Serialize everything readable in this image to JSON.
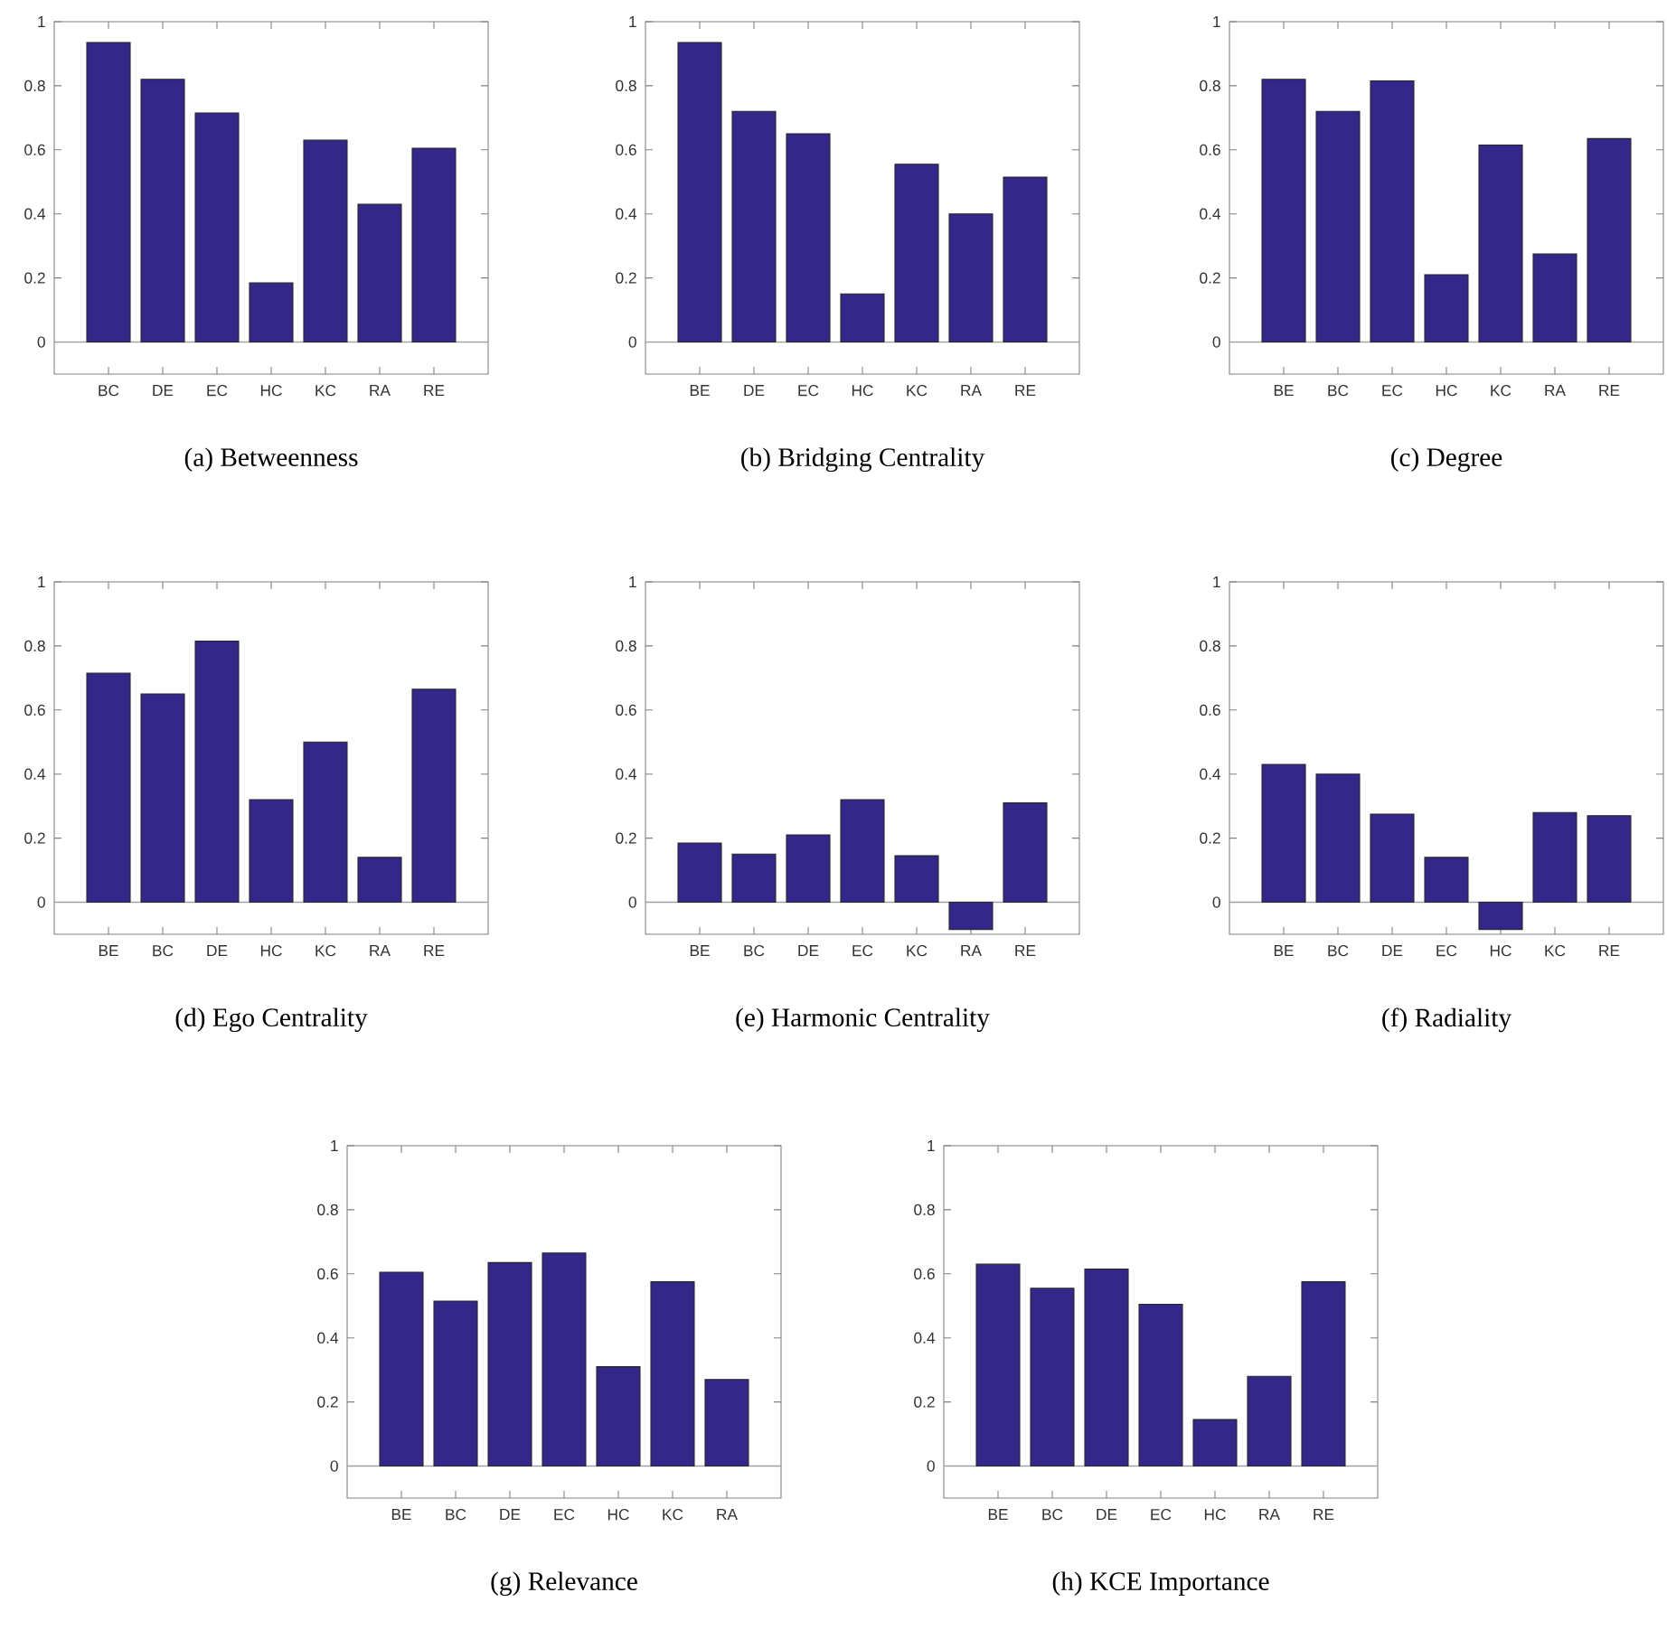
{
  "chart_data": [
    {
      "type": "bar",
      "title": "(a)  Betweenness",
      "categories": [
        "BC",
        "DE",
        "EC",
        "HC",
        "KC",
        "RA",
        "RE"
      ],
      "values": [
        0.935,
        0.82,
        0.715,
        0.185,
        0.63,
        0.43,
        0.605
      ],
      "color": "#33288a",
      "ylim": [
        -0.1,
        1
      ],
      "yticks": [
        0,
        0.2,
        0.4,
        0.6,
        0.8,
        1
      ],
      "ref_lines": [
        {
          "axis": "y",
          "value": 0,
          "color": "#a0a0a0"
        }
      ]
    },
    {
      "type": "bar",
      "title": "(b)  Bridging Centrality",
      "categories": [
        "BE",
        "DE",
        "EC",
        "HC",
        "KC",
        "RA",
        "RE"
      ],
      "values": [
        0.935,
        0.72,
        0.65,
        0.15,
        0.555,
        0.4,
        0.515
      ],
      "color": "#33288a",
      "ylim": [
        -0.1,
        1
      ],
      "yticks": [
        0,
        0.2,
        0.4,
        0.6,
        0.8,
        1
      ],
      "ref_lines": [
        {
          "axis": "y",
          "value": 0,
          "color": "#a0a0a0"
        }
      ]
    },
    {
      "type": "bar",
      "title": "(c)  Degree",
      "categories": [
        "BE",
        "BC",
        "EC",
        "HC",
        "KC",
        "RA",
        "RE"
      ],
      "values": [
        0.82,
        0.72,
        0.815,
        0.21,
        0.615,
        0.275,
        0.635
      ],
      "color": "#33288a",
      "ylim": [
        -0.1,
        1
      ],
      "yticks": [
        0,
        0.2,
        0.4,
        0.6,
        0.8,
        1
      ],
      "ref_lines": [
        {
          "axis": "y",
          "value": 0,
          "color": "#a0a0a0"
        }
      ]
    },
    {
      "type": "bar",
      "title": "(d)  Ego Centrality",
      "categories": [
        "BE",
        "BC",
        "DE",
        "HC",
        "KC",
        "RA",
        "RE"
      ],
      "values": [
        0.715,
        0.65,
        0.815,
        0.32,
        0.5,
        0.14,
        0.665
      ],
      "color": "#33288a",
      "ylim": [
        -0.1,
        1
      ],
      "yticks": [
        0,
        0.2,
        0.4,
        0.6,
        0.8,
        1
      ],
      "ref_lines": [
        {
          "axis": "y",
          "value": 0,
          "color": "#a0a0a0"
        }
      ]
    },
    {
      "type": "bar",
      "title": "(e)  Harmonic Centrality",
      "categories": [
        "BE",
        "BC",
        "DE",
        "EC",
        "KC",
        "RA",
        "RE"
      ],
      "values": [
        0.185,
        0.15,
        0.21,
        0.32,
        0.145,
        -0.085,
        0.31
      ],
      "color": "#33288a",
      "ylim": [
        -0.1,
        1
      ],
      "yticks": [
        0,
        0.2,
        0.4,
        0.6,
        0.8,
        1
      ],
      "ref_lines": [
        {
          "axis": "y",
          "value": 0,
          "color": "#a0a0a0"
        }
      ]
    },
    {
      "type": "bar",
      "title": "(f)  Radiality",
      "categories": [
        "BE",
        "BC",
        "DE",
        "EC",
        "HC",
        "KC",
        "RE"
      ],
      "values": [
        0.43,
        0.4,
        0.275,
        0.14,
        -0.085,
        0.28,
        0.27
      ],
      "color": "#33288a",
      "ylim": [
        -0.1,
        1
      ],
      "yticks": [
        0,
        0.2,
        0.4,
        0.6,
        0.8,
        1
      ],
      "ref_lines": [
        {
          "axis": "y",
          "value": 0,
          "color": "#a0a0a0"
        }
      ]
    },
    {
      "type": "bar",
      "title": "(g)  Relevance",
      "categories": [
        "BE",
        "BC",
        "DE",
        "EC",
        "HC",
        "KC",
        "RA"
      ],
      "values": [
        0.605,
        0.515,
        0.635,
        0.665,
        0.31,
        0.575,
        0.27
      ],
      "color": "#33288a",
      "ylim": [
        -0.1,
        1
      ],
      "yticks": [
        0,
        0.2,
        0.4,
        0.6,
        0.8,
        1
      ],
      "ref_lines": [
        {
          "axis": "y",
          "value": 0,
          "color": "#a0a0a0"
        }
      ]
    },
    {
      "type": "bar",
      "title": "(h)  KCE Importance",
      "categories": [
        "BE",
        "BC",
        "DE",
        "EC",
        "HC",
        "RA",
        "RE"
      ],
      "values": [
        0.63,
        0.555,
        0.615,
        0.505,
        0.145,
        0.28,
        0.575
      ],
      "color": "#33288a",
      "ylim": [
        -0.1,
        1
      ],
      "yticks": [
        0,
        0.2,
        0.4,
        0.6,
        0.8,
        1
      ],
      "ref_lines": [
        {
          "axis": "y",
          "value": 0,
          "color": "#a0a0a0"
        }
      ]
    }
  ]
}
